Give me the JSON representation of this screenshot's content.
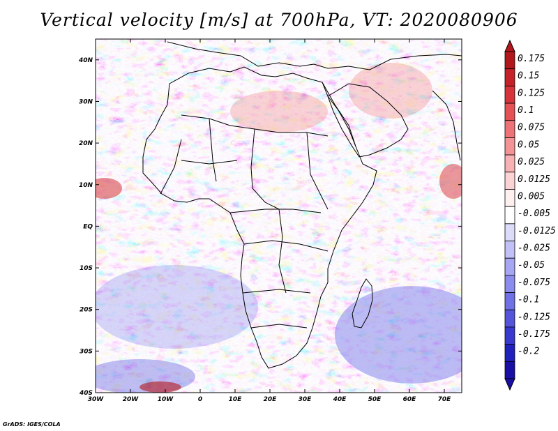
{
  "title": "Vertical velocity [m/s] at 700hPa, VT: 2020080906",
  "credit": "GrADS: IGES/COLA",
  "map": {
    "lon_ticks": [
      "30W",
      "20W",
      "10W",
      "0",
      "10E",
      "20E",
      "30E",
      "40E",
      "50E",
      "60E",
      "70E"
    ],
    "lat_ticks": [
      "40N",
      "30N",
      "20N",
      "10N",
      "EQ",
      "10S",
      "20S",
      "30S",
      "40S"
    ],
    "lon_range": [
      -30,
      75
    ],
    "lat_range": [
      -40,
      45
    ]
  },
  "colorbar": {
    "labels": [
      "0.175",
      "0.15",
      "0.125",
      "0.1",
      "0.075",
      "0.05",
      "0.025",
      "0.0125",
      "0.005",
      "-0.005",
      "-0.0125",
      "-0.025",
      "-0.05",
      "-0.075",
      "-0.1",
      "-0.125",
      "-0.175",
      "-0.2"
    ],
    "colors": [
      "#b2171c",
      "#c42128",
      "#d6343a",
      "#e55256",
      "#ee7378",
      "#f49396",
      "#f9b2b4",
      "#fcd3d4",
      "#fff0f0",
      "#ffffff",
      "#dcdcfa",
      "#c1c1f7",
      "#a6a6f3",
      "#8c8cee",
      "#7171e6",
      "#5555dc",
      "#3939cf",
      "#2020bd",
      "#1a0fa5"
    ]
  }
}
